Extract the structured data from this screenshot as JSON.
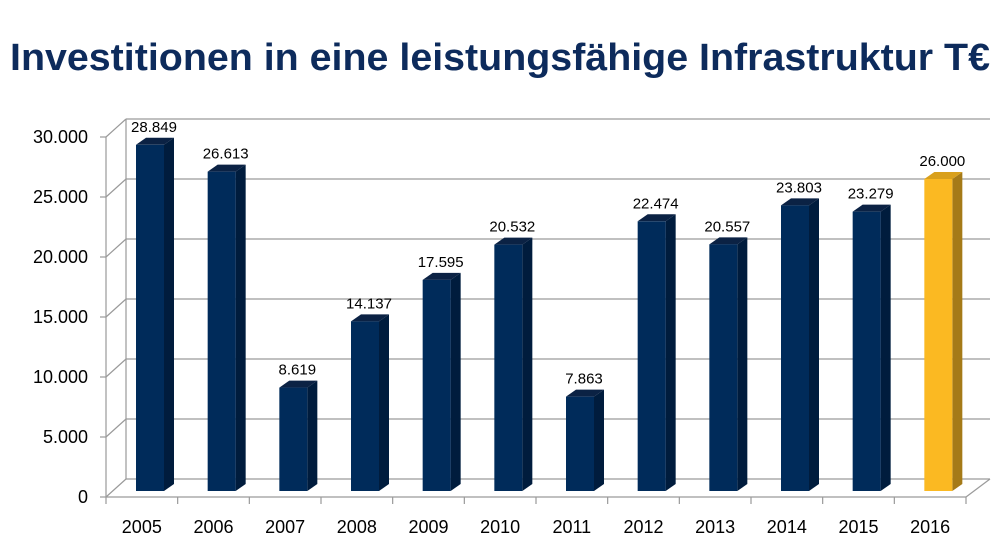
{
  "chart_data": {
    "type": "bar",
    "title": "Investitionen in eine leistungsfähige Infrastruktur T€",
    "xlabel": "",
    "ylabel": "",
    "categories": [
      "2005",
      "2006",
      "2007",
      "2008",
      "2009",
      "2010",
      "2011",
      "2012",
      "2013",
      "2014",
      "2015",
      "2016"
    ],
    "values": [
      28849,
      26613,
      8619,
      14137,
      17595,
      20532,
      7863,
      22474,
      20557,
      23803,
      23279,
      26000
    ],
    "data_labels": [
      "28.849",
      "26.613",
      "8.619",
      "14.137",
      "17.595",
      "20.532",
      "7.863",
      "22.474",
      "20.557",
      "23.803",
      "23.279",
      "26.000"
    ],
    "ylim": [
      0,
      30000
    ],
    "yticks": [
      0,
      5000,
      10000,
      15000,
      20000,
      25000,
      30000
    ],
    "ytick_labels": [
      "0",
      "5.000",
      "10.000",
      "15.000",
      "20.000",
      "25.000",
      "30.000"
    ],
    "grid": true,
    "style": "3d-column",
    "colors": {
      "bar": "#002b5a",
      "highlight": "#fbb922",
      "title": "#0d2b5c"
    },
    "highlight_category": "2016"
  }
}
